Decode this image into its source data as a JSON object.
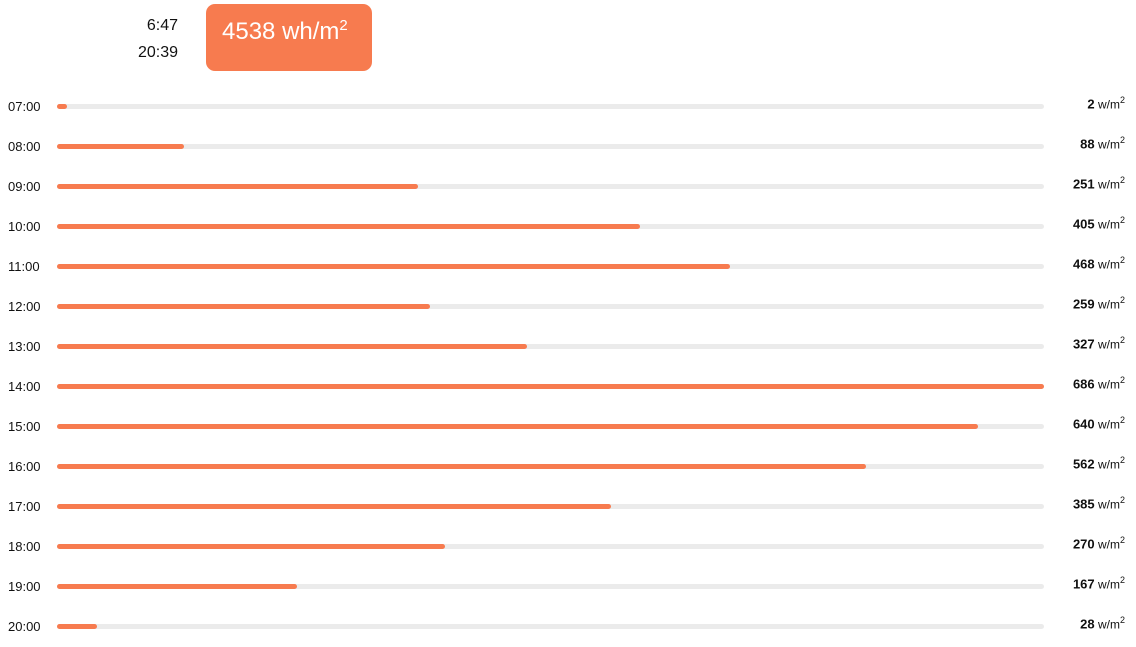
{
  "header": {
    "sunrise": "6:47",
    "sunset": "20:39",
    "total_value": "4538",
    "total_unit": "wh/m",
    "total_unit_exp": "2"
  },
  "colors": {
    "accent": "#f77b4f",
    "track": "#ebebeb"
  },
  "chart_data": {
    "type": "bar",
    "orientation": "horizontal",
    "unit": "w/m",
    "unit_exp": "2",
    "categories": [
      "07:00",
      "08:00",
      "09:00",
      "10:00",
      "11:00",
      "12:00",
      "13:00",
      "14:00",
      "15:00",
      "16:00",
      "17:00",
      "18:00",
      "19:00",
      "20:00"
    ],
    "values": [
      2,
      88,
      251,
      405,
      468,
      259,
      327,
      686,
      640,
      562,
      385,
      270,
      167,
      28
    ],
    "xlim": [
      0,
      686
    ],
    "grid": false,
    "legend": "none"
  }
}
